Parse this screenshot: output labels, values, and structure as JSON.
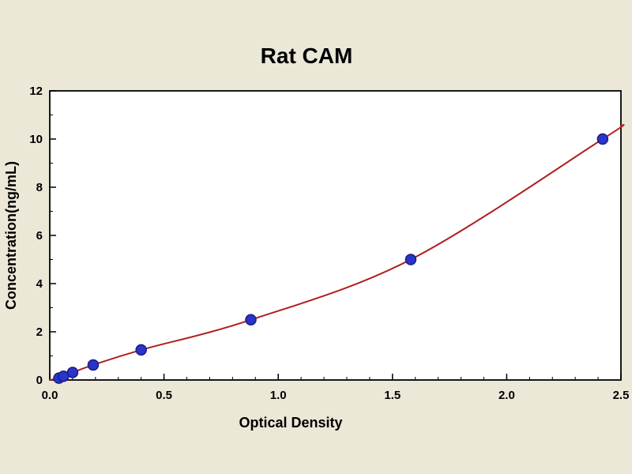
{
  "chart_data": {
    "type": "scatter",
    "title": "Rat CAM",
    "xlabel": "Optical Density",
    "ylabel": "Concentration(ng/mL)",
    "xlim": [
      0,
      2.5
    ],
    "ylim": [
      0,
      12
    ],
    "x_ticks": [
      0.0,
      0.5,
      1.0,
      1.5,
      2.0,
      2.5
    ],
    "x_tick_labels": [
      "0.0",
      "0.5",
      "1.0",
      "1.5",
      "2.0",
      "2.5"
    ],
    "y_ticks": [
      0,
      2,
      4,
      6,
      8,
      10,
      12
    ],
    "y_tick_labels": [
      "0",
      "2",
      "4",
      "6",
      "8",
      "10",
      "12"
    ],
    "x_minor_step": 0.1,
    "y_minor_step": 1,
    "grid": false,
    "legend": "none",
    "series": [
      {
        "name": "standard-points",
        "type": "scatter",
        "color": "#2a35c8",
        "edge_color": "#161c86",
        "x": [
          0.04,
          0.06,
          0.1,
          0.19,
          0.4,
          0.88,
          1.58,
          2.42
        ],
        "y": [
          0.078,
          0.156,
          0.3125,
          0.625,
          1.25,
          2.5,
          5.0,
          10.0
        ]
      },
      {
        "name": "fit-curve",
        "type": "line",
        "color": "#b02020",
        "x": [
          0,
          0.04,
          0.06,
          0.1,
          0.19,
          0.4,
          0.88,
          1.58,
          2.42,
          2.5
        ],
        "y": [
          0,
          0.078,
          0.156,
          0.3125,
          0.625,
          1.25,
          2.5,
          5.0,
          10.0,
          10.55
        ]
      }
    ],
    "colors": {
      "background": "#ece8d8",
      "plot_background": "#ffffff",
      "axis": "#000000",
      "text": "#000000"
    }
  }
}
